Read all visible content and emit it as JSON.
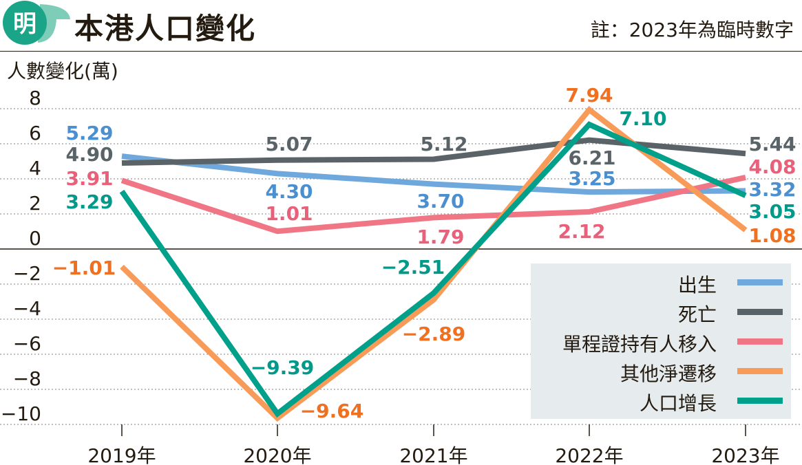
{
  "header": {
    "title": "本港人口變化",
    "note": "註：2023年為臨時數字",
    "logo_text": "明"
  },
  "chart_data": {
    "type": "line",
    "title": "本港人口變化",
    "ylabel": "人數變化(萬)",
    "xlabel": "",
    "categories": [
      "2019年",
      "2020年",
      "2021年",
      "2022年",
      "2023年"
    ],
    "ylim": [
      -10,
      8
    ],
    "yticks": [
      "8",
      "6",
      "4",
      "2",
      "0",
      "−2",
      "−4",
      "−6",
      "−8",
      "−10"
    ],
    "ytick_values": [
      8,
      6,
      4,
      2,
      0,
      -2,
      -4,
      -6,
      -8,
      -10
    ],
    "grid": true,
    "legend_position": "bottom-right",
    "series": [
      {
        "name": "出生",
        "color": "#6fa8dc",
        "label_color": "#4a8fd0",
        "values": [
          5.29,
          4.3,
          3.7,
          3.25,
          3.32
        ],
        "labels": [
          "5.29",
          "4.30",
          "3.70",
          "3.25",
          "3.32"
        ]
      },
      {
        "name": "死亡",
        "color": "#5a6468",
        "label_color": "#5a6468",
        "values": [
          4.9,
          5.07,
          5.12,
          6.21,
          5.44
        ],
        "labels": [
          "4.90",
          "5.07",
          "5.12",
          "6.21",
          "5.44"
        ]
      },
      {
        "name": "單程證持有人移入",
        "color": "#f07585",
        "label_color": "#e8607a",
        "values": [
          3.91,
          1.01,
          1.79,
          2.12,
          4.08
        ],
        "labels": [
          "3.91",
          "1.01",
          "1.79",
          "2.12",
          "4.08"
        ]
      },
      {
        "name": "其他淨遷移",
        "color": "#f89b58",
        "label_color": "#f07020",
        "values": [
          -1.01,
          -9.64,
          -2.89,
          7.94,
          1.08
        ],
        "labels": [
          "−1.01",
          "−9.64",
          "−2.89",
          "7.94",
          "1.08"
        ]
      },
      {
        "name": "人口增長",
        "color": "#00a08a",
        "label_color": "#00998a",
        "values": [
          3.29,
          -9.39,
          -2.51,
          7.1,
          3.05
        ],
        "labels": [
          "3.29",
          "−9.39",
          "−2.51",
          "7.10",
          "3.05"
        ]
      }
    ]
  }
}
